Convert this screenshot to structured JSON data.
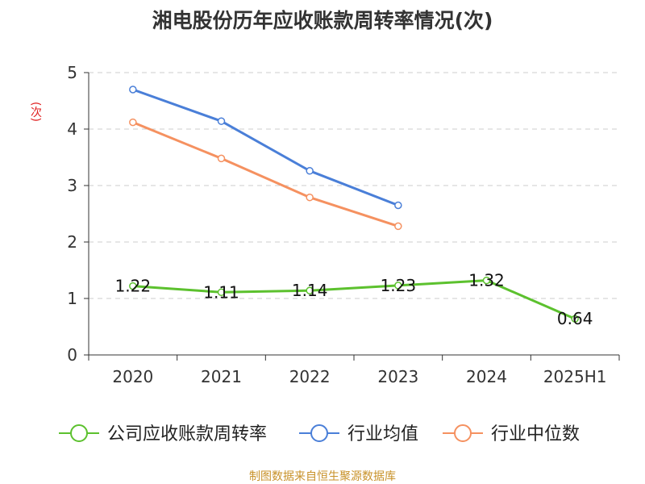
{
  "title": "湘电股份历年应收账款周转率情况(次)",
  "unit_label": "(次)",
  "source": "制图数据来自恒生聚源数据库",
  "colors": {
    "turnover": "#5cc12e",
    "industry_avg": "#4a7fd8",
    "industry_median": "#f59160",
    "grid": "#cccccc",
    "axis": "#333333",
    "unit": "#e02020",
    "source": "#c8922a"
  },
  "chart_data": {
    "type": "line",
    "title": "湘电股份历年应收账款周转率情况(次)",
    "ylabel": "(次)",
    "categories": [
      "2020",
      "2021",
      "2022",
      "2023",
      "2024",
      "2025H1"
    ],
    "ylim": [
      0,
      5
    ],
    "yticks": [
      0,
      1,
      2,
      3,
      4,
      5
    ],
    "grid": true,
    "legend_position": "bottom",
    "series": [
      {
        "name": "公司应收账款周转率",
        "color_key": "turnover",
        "values": [
          1.22,
          1.11,
          1.14,
          1.23,
          1.32,
          0.64
        ],
        "labels": [
          "1.22",
          "1.11",
          "1.14",
          "1.23",
          "1.32",
          "0.64"
        ]
      },
      {
        "name": "行业均值",
        "color_key": "industry_avg",
        "values": [
          4.7,
          4.14,
          3.26,
          2.65,
          null,
          null
        ]
      },
      {
        "name": "行业中位数",
        "color_key": "industry_median",
        "values": [
          4.12,
          3.48,
          2.79,
          2.28,
          null,
          null
        ]
      }
    ]
  }
}
